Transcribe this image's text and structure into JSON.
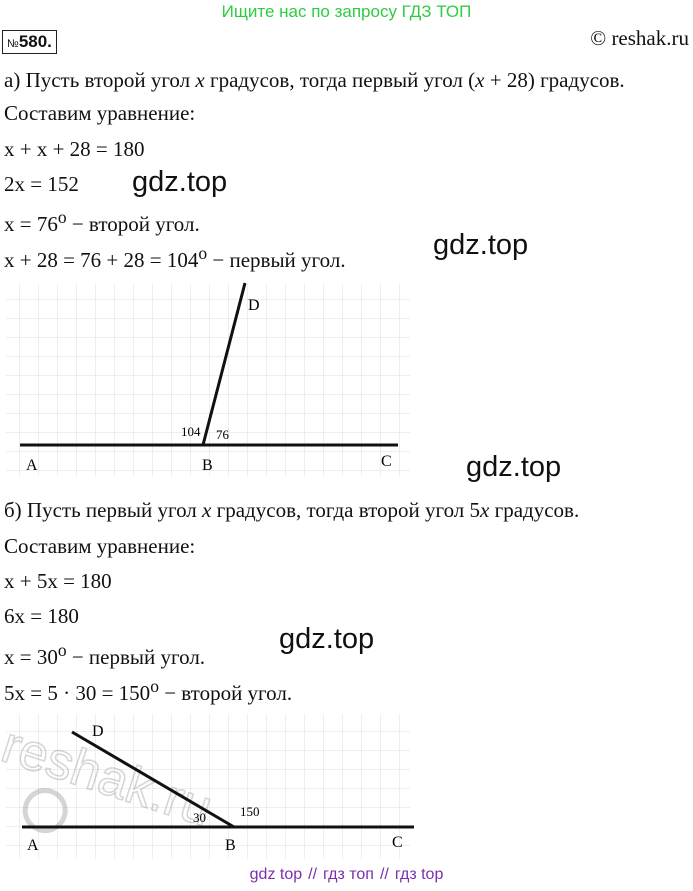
{
  "banner": "Ищите нас по запросу ГДЗ ТОП",
  "problem": {
    "sign": "№",
    "number": "580."
  },
  "copyright": "© reshak.ru",
  "part_a": {
    "line1_pre": "а) Пусть второй угол ",
    "line1_var1": "x",
    "line1_mid": " градусов, тогда первый угол (",
    "line1_var2": "x",
    "line1_post": " + 28) градусов.",
    "line2": "Составим уравнение:",
    "eq1_pre": "",
    "eq1": "x + x + 28 = 180",
    "eq2": "2x = 152",
    "eq3": "x = 76",
    "eq3_deg": "o",
    "eq3_post": " − второй угол.",
    "eq4": "x + 28 = 76 + 28 = 104",
    "eq4_deg": "o",
    "eq4_post": " − первый угол."
  },
  "figure_a": {
    "points": {
      "A": "A",
      "B": "B",
      "C": "C",
      "D": "D"
    },
    "angle_left": "104",
    "angle_right": "76"
  },
  "part_b": {
    "line1_pre": "б) Пусть первый угол ",
    "line1_var1": "x",
    "line1_mid": " градусов, тогда второй угол 5",
    "line1_var2": "x",
    "line1_post": " градусов.",
    "line2": "Составим уравнение:",
    "eq1": "x + 5x = 180",
    "eq2": "6x = 180",
    "eq3": "x = 30",
    "eq3_deg": "o",
    "eq3_post": " − первый угол.",
    "eq4": "5x = 5 · 30 = 150",
    "eq4_deg": "o",
    "eq4_post": " − второй угол."
  },
  "figure_b": {
    "points": {
      "A": "A",
      "B": "B",
      "C": "C",
      "D": "D"
    },
    "angle_left": "30",
    "angle_right": "150"
  },
  "watermarks": {
    "gdz": "gdz.top",
    "reshak": "reshak.ru"
  },
  "footer": {
    "item1": "gdz top",
    "sep": "//",
    "item2": "гдз топ",
    "item3": "гдз top"
  },
  "colors": {
    "banner": "#2ecc40",
    "footer": "#7a2fb0",
    "grid": "#dcdcdc"
  }
}
